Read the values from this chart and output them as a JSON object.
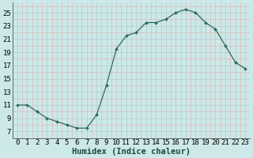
{
  "x": [
    0,
    1,
    2,
    3,
    4,
    5,
    6,
    7,
    8,
    9,
    10,
    11,
    12,
    13,
    14,
    15,
    16,
    17,
    18,
    19,
    20,
    21,
    22,
    23
  ],
  "y": [
    11,
    11,
    10,
    9,
    8.5,
    8,
    7.5,
    7.5,
    9.5,
    14,
    19.5,
    21.5,
    22,
    23.5,
    23.5,
    24,
    25,
    25.5,
    25,
    23.5,
    22.5,
    20,
    17.5,
    16.5
  ],
  "line_color": "#2d6b5e",
  "marker_color": "#2d6b5e",
  "bg_color": "#cce8e8",
  "major_grid_color": "#b0cccc",
  "minor_grid_color": "#e0b8b8",
  "xlabel": "Humidex (Indice chaleur)",
  "yticks": [
    7,
    9,
    11,
    13,
    15,
    17,
    19,
    21,
    23,
    25
  ],
  "xticks": [
    0,
    1,
    2,
    3,
    4,
    5,
    6,
    7,
    8,
    9,
    10,
    11,
    12,
    13,
    14,
    15,
    16,
    17,
    18,
    19,
    20,
    21,
    22,
    23
  ],
  "xlim": [
    -0.5,
    23.5
  ],
  "ylim": [
    6.0,
    26.5
  ],
  "xlabel_fontsize": 7.5,
  "tick_fontsize": 6.5
}
